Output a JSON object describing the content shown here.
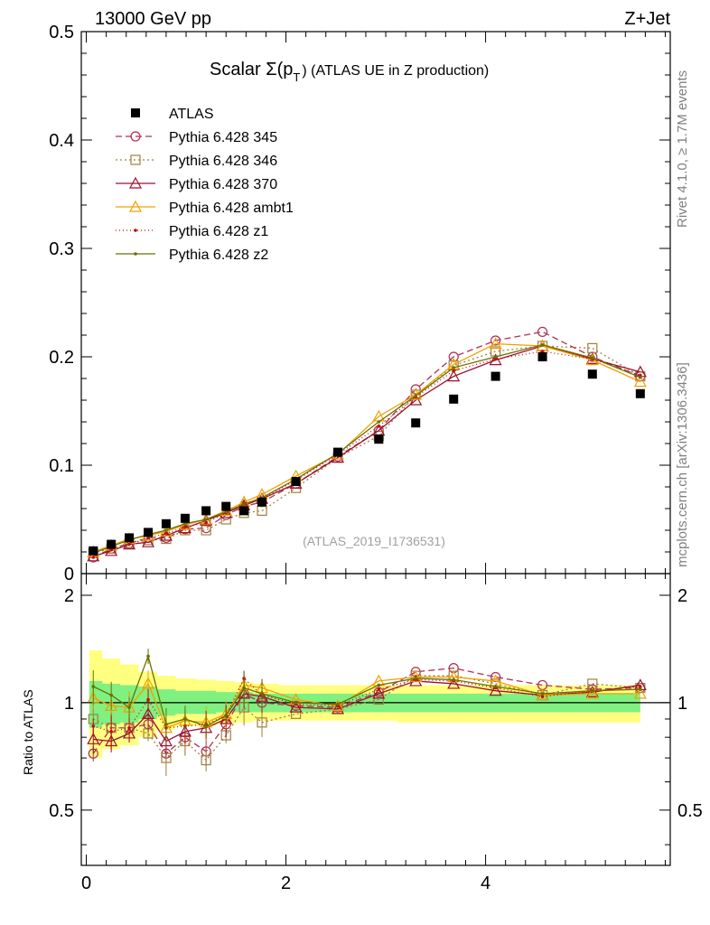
{
  "header": {
    "energy_label": "13000 GeV pp",
    "process_label": "Z+Jet",
    "title_prefix": "Scalar Σ(p",
    "title_sub": "T",
    "title_suffix": ") (ATLAS UE in Z production)",
    "side_label_top": "Rivet 4.1.0, ≥ 1.7M events",
    "side_label_bottom": "mcplots.cern.ch [arXiv:1306.3436]",
    "watermark": "(ATLAS_2019_I1736531)",
    "ratio_ylabel": "Ratio to ATLAS"
  },
  "colors": {
    "data": "#000000",
    "p345": "#b03050",
    "p346": "#a08040",
    "p370": "#9c1030",
    "ambt1": "#f0a000",
    "z1": "#c01010",
    "z2": "#6b7000",
    "band_yellow": "#ffff80",
    "band_green": "#80f080"
  },
  "chart_data": {
    "type": "line",
    "title": "Scalar Σ(pT) (ATLAS UE in Z production)",
    "xlabel": "",
    "ylabel": "",
    "xlim": [
      -0.05,
      5.85
    ],
    "ylim": [
      0,
      0.5
    ],
    "ratio_ylim": [
      0.35,
      2.3
    ],
    "xticks": [
      "0",
      "2",
      "4"
    ],
    "yticks": [
      "0",
      "0.1",
      "0.2",
      "0.3",
      "0.4",
      "0.5"
    ],
    "ratio_yticks": [
      "0.5",
      "1",
      "2"
    ],
    "x": [
      0.07,
      0.25,
      0.43,
      0.62,
      0.8,
      0.99,
      1.2,
      1.4,
      1.58,
      1.76,
      2.1,
      2.52,
      2.93,
      3.3,
      3.68,
      4.1,
      4.57,
      5.07,
      5.55
    ],
    "data": {
      "name": "ATLAS",
      "values": [
        0.021,
        0.027,
        0.033,
        0.038,
        0.046,
        0.051,
        0.058,
        0.062,
        0.058,
        0.066,
        0.085,
        0.112,
        0.124,
        0.139,
        0.161,
        0.182,
        0.2,
        0.184,
        0.166
      ]
    },
    "band_yellow": [
      [
        0.7,
        1.4
      ],
      [
        0.74,
        1.33
      ],
      [
        0.76,
        1.28
      ],
      [
        0.8,
        1.22
      ],
      [
        0.84,
        1.19
      ],
      [
        0.86,
        1.17
      ],
      [
        0.86,
        1.16
      ],
      [
        0.87,
        1.15
      ],
      [
        0.88,
        1.14
      ],
      [
        0.89,
        1.13
      ],
      [
        0.89,
        1.12
      ],
      [
        0.89,
        1.12
      ],
      [
        0.89,
        1.12
      ],
      [
        0.88,
        1.12
      ],
      [
        0.88,
        1.12
      ],
      [
        0.88,
        1.12
      ],
      [
        0.88,
        1.12
      ],
      [
        0.88,
        1.12
      ],
      [
        0.88,
        1.12
      ]
    ],
    "band_green": [
      [
        0.85,
        1.15
      ],
      [
        0.87,
        1.13
      ],
      [
        0.88,
        1.12
      ],
      [
        0.9,
        1.11
      ],
      [
        0.92,
        1.09
      ],
      [
        0.93,
        1.08
      ],
      [
        0.93,
        1.08
      ],
      [
        0.94,
        1.07
      ],
      [
        0.94,
        1.07
      ],
      [
        0.94,
        1.06
      ],
      [
        0.94,
        1.06
      ],
      [
        0.94,
        1.06
      ],
      [
        0.94,
        1.06
      ],
      [
        0.94,
        1.06
      ],
      [
        0.94,
        1.06
      ],
      [
        0.94,
        1.06
      ],
      [
        0.94,
        1.06
      ],
      [
        0.94,
        1.06
      ],
      [
        0.94,
        1.06
      ]
    ],
    "series": [
      {
        "name": "Pythia 6.428 345",
        "color_key": "p345",
        "dash": "7,4",
        "marker": "circle",
        "values": [
          0.015,
          0.023,
          0.028,
          0.033,
          0.033,
          0.041,
          0.042,
          0.054,
          0.062,
          0.066,
          0.083,
          0.108,
          0.132,
          0.17,
          0.2,
          0.215,
          0.223,
          0.2,
          0.182
        ],
        "ratio": [
          0.72,
          0.85,
          0.85,
          0.87,
          0.72,
          0.8,
          0.73,
          0.87,
          1.06,
          1.0,
          0.98,
          0.97,
          1.07,
          1.22,
          1.25,
          1.18,
          1.12,
          1.09,
          1.1
        ]
      },
      {
        "name": "Pythia 6.428 346",
        "color_key": "p346",
        "dash": "2,3",
        "marker": "square",
        "values": [
          0.019,
          0.023,
          0.028,
          0.031,
          0.032,
          0.04,
          0.04,
          0.05,
          0.056,
          0.058,
          0.079,
          0.107,
          0.127,
          0.165,
          0.192,
          0.205,
          0.21,
          0.208,
          0.182
        ],
        "ratio": [
          0.9,
          0.85,
          0.85,
          0.82,
          0.7,
          0.78,
          0.69,
          0.81,
          0.97,
          0.88,
          0.93,
          0.96,
          1.02,
          1.19,
          1.19,
          1.13,
          1.05,
          1.13,
          1.1
        ]
      },
      {
        "name": "Pythia 6.428 370",
        "color_key": "p370",
        "dash": "",
        "marker": "triangle",
        "values": [
          0.016,
          0.021,
          0.027,
          0.029,
          0.035,
          0.042,
          0.049,
          0.056,
          0.063,
          0.069,
          0.083,
          0.107,
          0.132,
          0.16,
          0.182,
          0.197,
          0.21,
          0.198,
          0.186
        ],
        "ratio": [
          0.79,
          0.78,
          0.82,
          0.93,
          0.78,
          0.83,
          0.85,
          0.9,
          1.06,
          1.04,
          0.97,
          0.96,
          1.06,
          1.15,
          1.13,
          1.08,
          1.05,
          1.07,
          1.12
        ]
      },
      {
        "name": "Pythia 6.428 ambt1",
        "color_key": "ambt1",
        "dash": "",
        "marker": "triangle",
        "values": [
          0.02,
          0.026,
          0.032,
          0.035,
          0.039,
          0.045,
          0.05,
          0.058,
          0.066,
          0.073,
          0.09,
          0.11,
          0.145,
          0.165,
          0.193,
          0.212,
          0.21,
          0.197,
          0.177
        ],
        "ratio": [
          1.03,
          0.98,
          0.97,
          1.13,
          0.85,
          0.89,
          0.88,
          0.93,
          1.12,
          1.1,
          1.02,
          0.98,
          1.15,
          1.18,
          1.18,
          1.15,
          1.05,
          1.06,
          1.06
        ]
      },
      {
        "name": "Pythia 6.428 z1",
        "color_key": "z1",
        "dash": "1,3",
        "marker": "dot",
        "values": [
          0.015,
          0.022,
          0.027,
          0.033,
          0.037,
          0.043,
          0.047,
          0.056,
          0.065,
          0.069,
          0.086,
          0.11,
          0.136,
          0.163,
          0.187,
          0.198,
          0.205,
          0.198,
          0.183
        ],
        "ratio": [
          0.86,
          0.83,
          0.85,
          1.02,
          0.85,
          0.86,
          0.87,
          0.92,
          1.17,
          1.05,
          0.99,
          0.98,
          1.09,
          1.16,
          1.15,
          1.1,
          1.04,
          1.08,
          1.11
        ]
      },
      {
        "name": "Pythia 6.428 z2",
        "color_key": "z2",
        "dash": "",
        "marker": "dot",
        "values": [
          0.019,
          0.025,
          0.031,
          0.036,
          0.04,
          0.046,
          0.05,
          0.057,
          0.064,
          0.07,
          0.087,
          0.111,
          0.14,
          0.164,
          0.19,
          0.2,
          0.211,
          0.199,
          0.181
        ],
        "ratio": [
          1.11,
          1.05,
          0.97,
          1.35,
          0.87,
          0.9,
          0.86,
          0.92,
          1.1,
          1.06,
          1.0,
          0.99,
          1.12,
          1.17,
          1.16,
          1.11,
          1.06,
          1.08,
          1.09
        ]
      }
    ]
  }
}
